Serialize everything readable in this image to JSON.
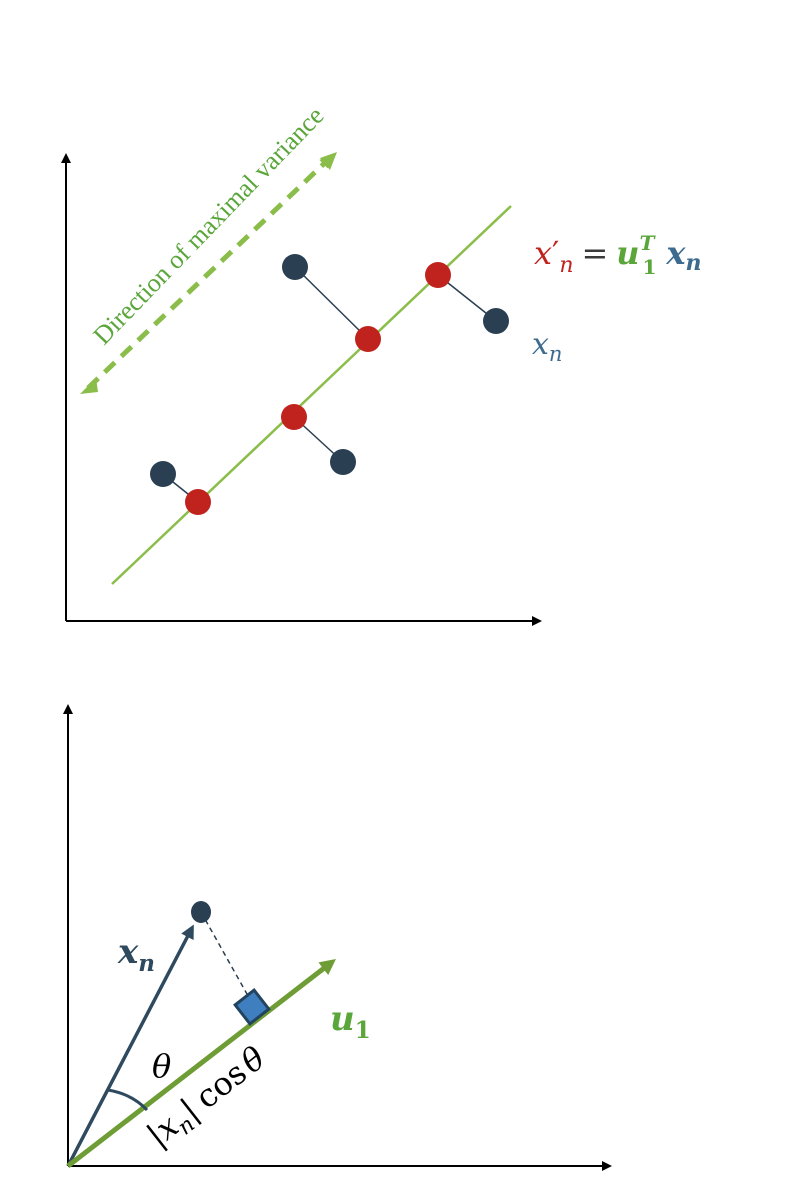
{
  "top_diagram": {
    "direction_label": "Direction of maximal variance",
    "equation": {
      "lhs_symbol": "x",
      "lhs_prime": "′",
      "lhs_subscript": "n",
      "equals": "=",
      "u_symbol": "u",
      "u_superscript": "T",
      "u_subscript": "1",
      "x_symbol": "x",
      "x_subscript": "n"
    },
    "point_label": {
      "symbol": "x",
      "subscript": "n"
    }
  },
  "bottom_diagram": {
    "xn_label": {
      "symbol": "x",
      "subscript": "n"
    },
    "u1_label": {
      "symbol": "u",
      "subscript": "1"
    },
    "theta_label": "θ",
    "projection_label": {
      "bar_open": "|",
      "symbol": "x",
      "subscript": "n",
      "bar_close": "|",
      "cos": "cos",
      "theta": "θ"
    }
  },
  "colors": {
    "axis": "#000000",
    "line_green": "#8bbd4a",
    "arrow_green": "#6f9d35",
    "dark_point": "#2a3f52",
    "red_point": "#c0231e",
    "red_text": "#c0231e",
    "green_text": "#5aa63a",
    "blue_text": "#3d6b8f"
  }
}
